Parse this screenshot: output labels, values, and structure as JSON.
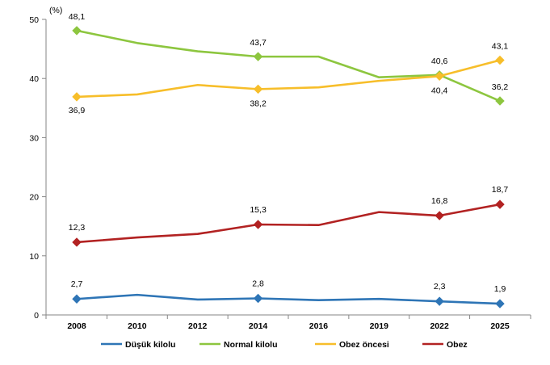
{
  "chart_data": {
    "type": "line",
    "title": "",
    "ylabel": "(%)",
    "xlabel": "",
    "ylim": [
      0,
      50
    ],
    "y_ticks": [
      "0",
      "10",
      "20",
      "30",
      "40",
      "50"
    ],
    "categories": [
      "2008",
      "2010",
      "2012",
      "2014",
      "2016",
      "2019",
      "2022",
      "2025"
    ],
    "grid": false,
    "legend_position": "bottom",
    "series": [
      {
        "name": "Düşük kilolu",
        "color": "#2E75B6",
        "marker": "diamond",
        "values": [
          2.7,
          3.4,
          2.6,
          2.8,
          2.5,
          2.7,
          2.3,
          1.9
        ],
        "labels": [
          {
            "index": 0,
            "text": "2,7"
          },
          {
            "index": 3,
            "text": "2,8"
          },
          {
            "index": 6,
            "text": "2,3"
          },
          {
            "index": 7,
            "text": "1,9"
          }
        ]
      },
      {
        "name": "Normal kilolu",
        "color": "#8DC63F",
        "marker": "diamond",
        "values": [
          48.1,
          46.0,
          44.6,
          43.7,
          43.7,
          40.2,
          40.6,
          36.2
        ],
        "labels": [
          {
            "index": 0,
            "text": "48,1"
          },
          {
            "index": 3,
            "text": "43,7"
          },
          {
            "index": 6,
            "text": "40,6"
          },
          {
            "index": 7,
            "text": "36,2"
          }
        ]
      },
      {
        "name": "Obez öncesi",
        "color": "#F7BE2A",
        "marker": "diamond",
        "values": [
          36.9,
          37.3,
          38.9,
          38.2,
          38.5,
          39.6,
          40.4,
          43.1
        ],
        "labels": [
          {
            "index": 0,
            "text": "36,9"
          },
          {
            "index": 3,
            "text": "38,2"
          },
          {
            "index": 6,
            "text": "40,4"
          },
          {
            "index": 7,
            "text": "43,1"
          }
        ]
      },
      {
        "name": "Obez",
        "color": "#B22222",
        "marker": "diamond",
        "values": [
          12.3,
          13.1,
          13.7,
          15.3,
          15.2,
          17.4,
          16.8,
          18.7
        ],
        "labels": [
          {
            "index": 0,
            "text": "12,3"
          },
          {
            "index": 3,
            "text": "15,3"
          },
          {
            "index": 6,
            "text": "16,8"
          },
          {
            "index": 7,
            "text": "18,7"
          }
        ]
      }
    ]
  }
}
